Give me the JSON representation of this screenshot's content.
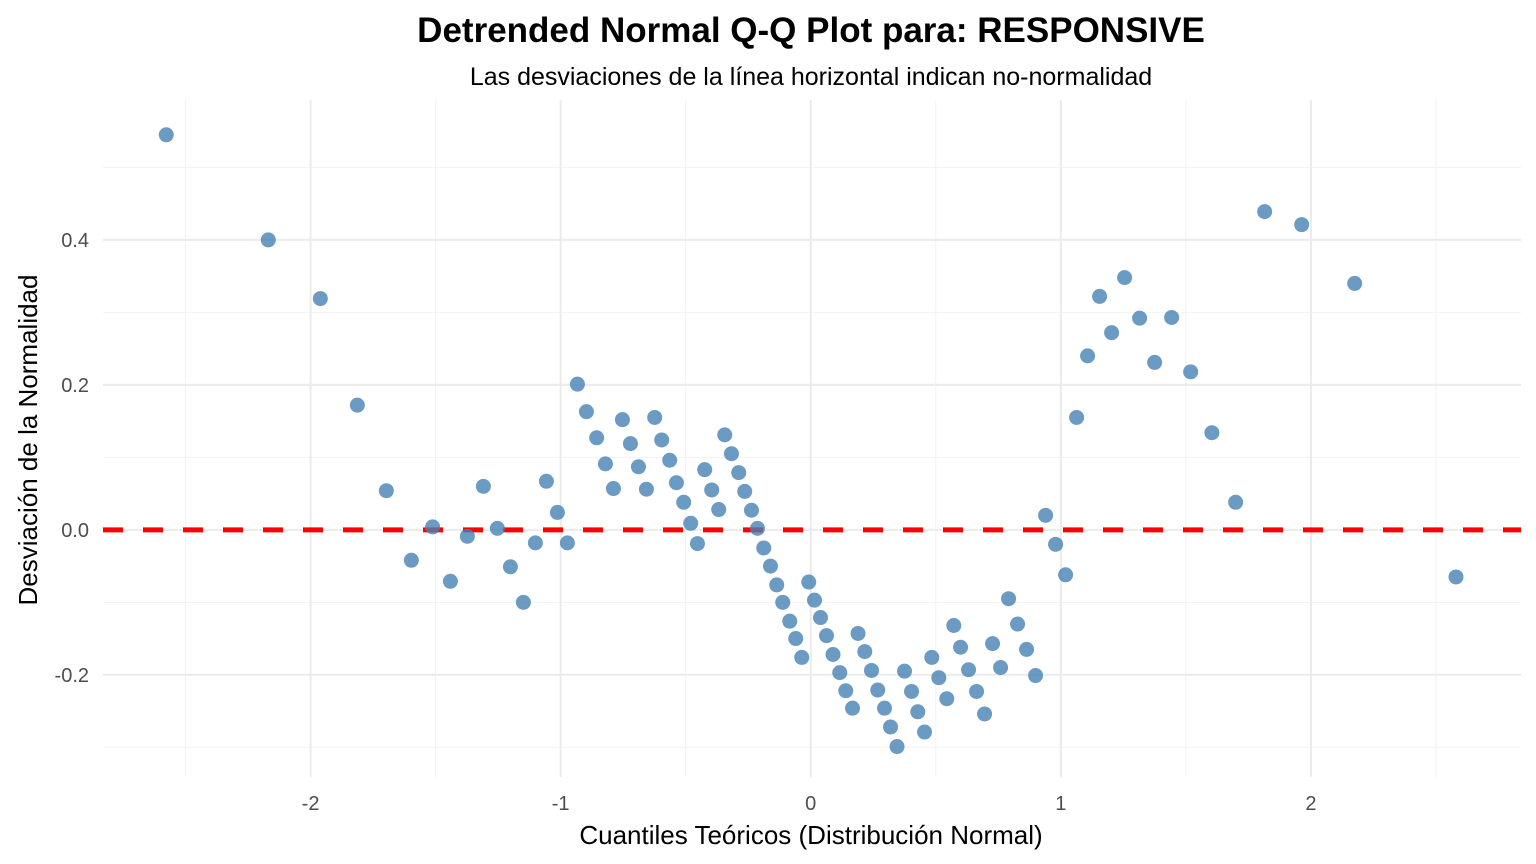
{
  "chart_data": {
    "type": "scatter",
    "title": "Detrended Normal Q-Q Plot para: RESPONSIVE",
    "subtitle": "Las desviaciones de la línea horizontal indican no-normalidad",
    "xlabel": "Cuantiles Teóricos (Distribución Normal)",
    "ylabel": "Desviación de la Normalidad",
    "xlim": [
      -2.83,
      2.84
    ],
    "ylim": [
      -0.341,
      0.593
    ],
    "x_ticks": [
      -2,
      -1,
      0,
      1,
      2
    ],
    "x_tick_labels": [
      "-2",
      "-1",
      "0",
      "1",
      "2"
    ],
    "x_minor_ticks": [
      -2.5,
      -1.5,
      -0.5,
      0.5,
      1.5,
      2.5
    ],
    "y_ticks": [
      -0.2,
      0.0,
      0.2,
      0.4
    ],
    "y_tick_labels": [
      "-0.2",
      "0.0",
      "0.2",
      "0.4"
    ],
    "y_minor_ticks": [
      -0.3,
      -0.1,
      0.1,
      0.3,
      0.5
    ],
    "grid": true,
    "legend": "none",
    "reference_line": {
      "y": 0,
      "style": "dashed",
      "color": "#ff0000"
    },
    "point_color": "#4682b4",
    "points": [
      [
        -2.577,
        0.545
      ],
      [
        -2.169,
        0.4
      ],
      [
        -1.961,
        0.319
      ],
      [
        -1.813,
        0.172
      ],
      [
        -1.697,
        0.054
      ],
      [
        -1.597,
        -0.042
      ],
      [
        -1.512,
        0.004
      ],
      [
        -1.441,
        -0.071
      ],
      [
        -1.373,
        -0.009
      ],
      [
        -1.309,
        0.06
      ],
      [
        -1.253,
        0.002
      ],
      [
        -1.201,
        -0.051
      ],
      [
        -1.149,
        -0.1
      ],
      [
        -1.101,
        -0.018
      ],
      [
        -1.057,
        0.067
      ],
      [
        -1.013,
        0.024
      ],
      [
        -0.973,
        -0.018
      ],
      [
        -0.933,
        0.201
      ],
      [
        -0.897,
        0.163
      ],
      [
        -0.856,
        0.127
      ],
      [
        -0.821,
        0.091
      ],
      [
        -0.789,
        0.057
      ],
      [
        -0.753,
        0.152
      ],
      [
        -0.721,
        0.119
      ],
      [
        -0.689,
        0.087
      ],
      [
        -0.657,
        0.056
      ],
      [
        -0.624,
        0.155
      ],
      [
        -0.596,
        0.124
      ],
      [
        -0.564,
        0.096
      ],
      [
        -0.537,
        0.065
      ],
      [
        -0.508,
        0.038
      ],
      [
        -0.48,
        0.009
      ],
      [
        -0.453,
        -0.019
      ],
      [
        -0.424,
        0.083
      ],
      [
        -0.396,
        0.055
      ],
      [
        -0.368,
        0.028
      ],
      [
        -0.344,
        0.131
      ],
      [
        -0.317,
        0.105
      ],
      [
        -0.288,
        0.079
      ],
      [
        -0.264,
        0.053
      ],
      [
        -0.237,
        0.027
      ],
      [
        -0.213,
        0.002
      ],
      [
        -0.188,
        -0.025
      ],
      [
        -0.161,
        -0.05
      ],
      [
        -0.136,
        -0.076
      ],
      [
        -0.112,
        -0.1
      ],
      [
        -0.084,
        -0.126
      ],
      [
        -0.06,
        -0.15
      ],
      [
        -0.036,
        -0.176
      ],
      [
        -0.008,
        -0.072
      ],
      [
        0.015,
        -0.097
      ],
      [
        0.039,
        -0.121
      ],
      [
        0.063,
        -0.146
      ],
      [
        0.089,
        -0.172
      ],
      [
        0.116,
        -0.197
      ],
      [
        0.14,
        -0.222
      ],
      [
        0.167,
        -0.246
      ],
      [
        0.189,
        -0.143
      ],
      [
        0.216,
        -0.168
      ],
      [
        0.243,
        -0.194
      ],
      [
        0.268,
        -0.221
      ],
      [
        0.295,
        -0.246
      ],
      [
        0.319,
        -0.272
      ],
      [
        0.345,
        -0.299
      ],
      [
        0.375,
        -0.195
      ],
      [
        0.403,
        -0.223
      ],
      [
        0.428,
        -0.251
      ],
      [
        0.455,
        -0.279
      ],
      [
        0.484,
        -0.176
      ],
      [
        0.512,
        -0.204
      ],
      [
        0.544,
        -0.233
      ],
      [
        0.572,
        -0.132
      ],
      [
        0.599,
        -0.162
      ],
      [
        0.631,
        -0.193
      ],
      [
        0.663,
        -0.223
      ],
      [
        0.695,
        -0.254
      ],
      [
        0.727,
        -0.157
      ],
      [
        0.759,
        -0.19
      ],
      [
        0.791,
        -0.095
      ],
      [
        0.827,
        -0.13
      ],
      [
        0.863,
        -0.165
      ],
      [
        0.899,
        -0.201
      ],
      [
        0.939,
        0.02
      ],
      [
        0.979,
        -0.02
      ],
      [
        1.019,
        -0.062
      ],
      [
        1.063,
        0.155
      ],
      [
        1.107,
        0.24
      ],
      [
        1.155,
        0.322
      ],
      [
        1.203,
        0.272
      ],
      [
        1.255,
        0.348
      ],
      [
        1.315,
        0.292
      ],
      [
        1.375,
        0.231
      ],
      [
        1.443,
        0.293
      ],
      [
        1.519,
        0.218
      ],
      [
        1.604,
        0.134
      ],
      [
        1.699,
        0.038
      ],
      [
        1.815,
        0.439
      ],
      [
        1.963,
        0.421
      ],
      [
        2.175,
        0.34
      ],
      [
        2.58,
        -0.065
      ]
    ]
  }
}
